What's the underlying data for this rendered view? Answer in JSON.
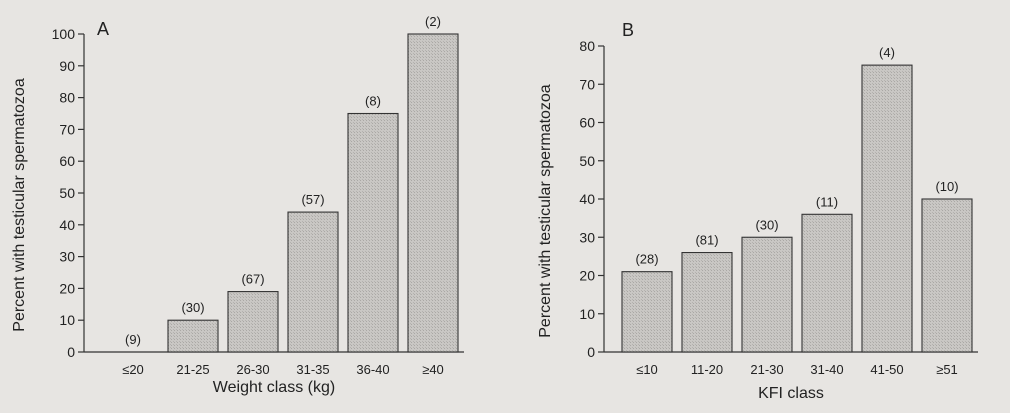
{
  "chart_data": [
    {
      "type": "bar",
      "panel_label": "A",
      "categories": [
        "≤20",
        "21-25",
        "26-30",
        "31-35",
        "36-40",
        "≥40"
      ],
      "values": [
        0,
        10,
        19,
        44,
        75,
        100
      ],
      "data_labels": [
        "(9)",
        "(30)",
        "(67)",
        "(57)",
        "(8)",
        "(2)"
      ],
      "xlabel": "Weight class (kg)",
      "ylabel": "Percent with testicular spermatozoa",
      "ylim": [
        0,
        100
      ],
      "yticks": [
        0,
        10,
        20,
        30,
        40,
        50,
        60,
        70,
        80,
        90,
        100
      ],
      "grid": false,
      "bar_color": "#c9c7c4"
    },
    {
      "type": "bar",
      "panel_label": "B",
      "categories": [
        "≤10",
        "11-20",
        "21-30",
        "31-40",
        "41-50",
        "≥51"
      ],
      "values": [
        21,
        26,
        30,
        36,
        75,
        40
      ],
      "data_labels": [
        "(28)",
        "(81)",
        "(30)",
        "(11)",
        "(4)",
        "(10)"
      ],
      "xlabel": "KFI class",
      "ylabel": "Percent with testicular spermatozoa",
      "ylim": [
        0,
        80
      ],
      "yticks": [
        0,
        10,
        20,
        30,
        40,
        50,
        60,
        70,
        80
      ],
      "grid": false,
      "bar_color": "#c9c7c4"
    }
  ]
}
